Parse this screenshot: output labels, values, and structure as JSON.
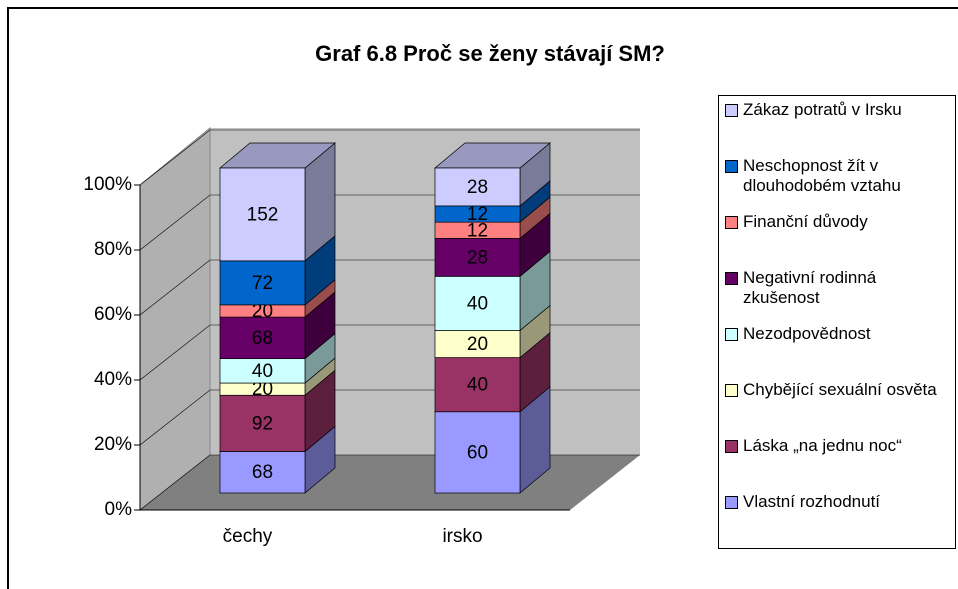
{
  "chart_data": {
    "type": "bar",
    "stacking": "percent",
    "title": "Graf 6.8 Proč se ženy stávají SM?",
    "categories": [
      "čechy",
      "irsko"
    ],
    "series": [
      {
        "name": "Vlastní rozhodnutí",
        "color": "#9999ff",
        "values": [
          68,
          60
        ]
      },
      {
        "name": "Láska „na jednu noc“",
        "color": "#993366",
        "values": [
          92,
          40
        ]
      },
      {
        "name": "Chybějící sexuální osvěta",
        "color": "#ffffcc",
        "values": [
          20,
          20
        ]
      },
      {
        "name": "Nezodpovědnost",
        "color": "#ccffff",
        "values": [
          40,
          40
        ]
      },
      {
        "name": "Negativní rodinná zkušenost",
        "color": "#660066",
        "values": [
          68,
          28
        ]
      },
      {
        "name": "Finanční důvody",
        "color": "#ff8080",
        "values": [
          20,
          12
        ]
      },
      {
        "name": "Neschopnost žít v dlouhodobém vztahu",
        "color": "#0066cc",
        "values": [
          72,
          12
        ]
      },
      {
        "name": "Zákaz potratů v Irsku",
        "color": "#ccccff",
        "values": [
          152,
          28
        ]
      }
    ],
    "ylim": [
      0,
      100
    ],
    "yticks": [
      {
        "value": 0,
        "label": "0%"
      },
      {
        "value": 20,
        "label": "20%"
      },
      {
        "value": 40,
        "label": "40%"
      },
      {
        "value": 60,
        "label": "60%"
      },
      {
        "value": 80,
        "label": "80%"
      },
      {
        "value": 100,
        "label": "100%"
      }
    ],
    "grid": true,
    "legend": "right"
  }
}
